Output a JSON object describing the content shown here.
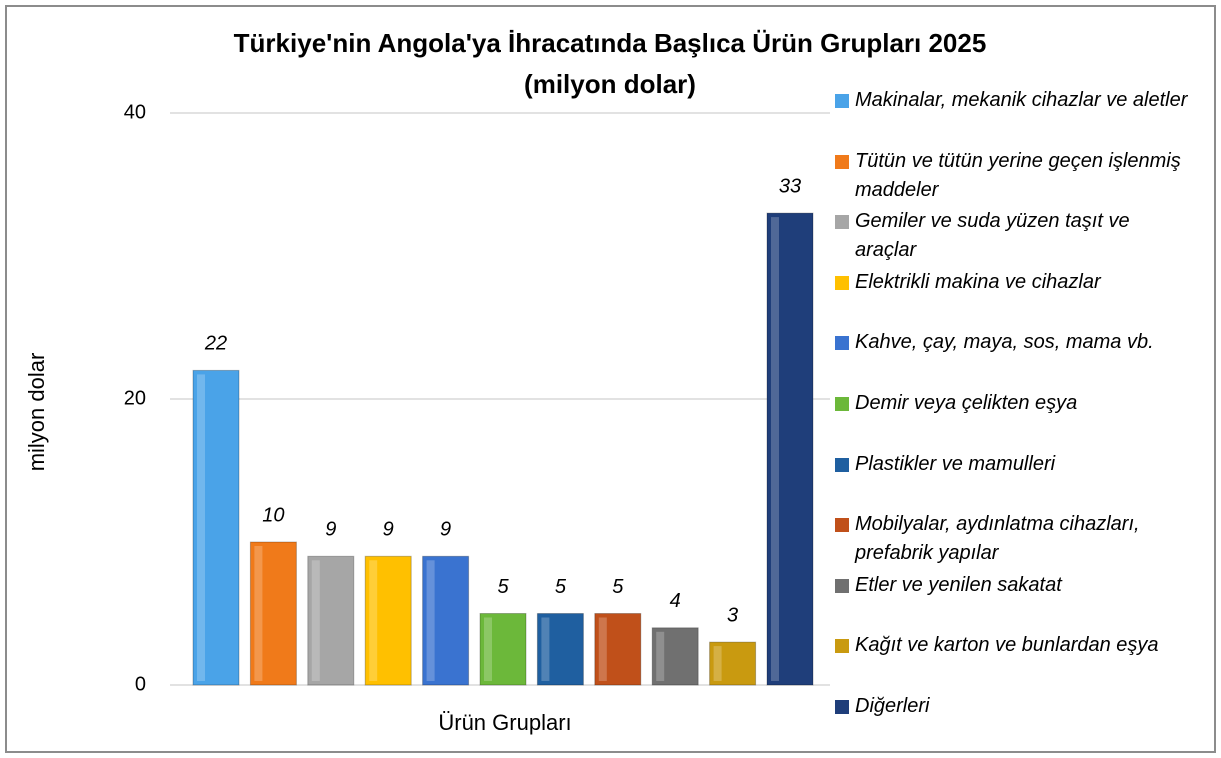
{
  "chart_data": {
    "type": "bar",
    "title": "Türkiye'nin Angola'ya İhracatında Başlıca Ürün Grupları 2025",
    "subtitle": "(milyon dolar)",
    "x_label": "Ürün Grupları",
    "y_label": "milyon dolar",
    "categories": [
      null
    ],
    "series": [
      {
        "name": "Makinalar, mekanik cihazlar ve aletler",
        "color": "#4aa3e8",
        "values": [
          22
        ]
      },
      {
        "name": "Tütün ve tütün yerine geçen işlenmiş maddeler",
        "color": "#f07a1a",
        "values": [
          10
        ]
      },
      {
        "name": "Gemiler ve suda yüzen taşıt ve araçlar",
        "color": "#a6a6a6",
        "values": [
          9
        ]
      },
      {
        "name": "Elektrikli makina ve cihazlar",
        "color": "#ffc000",
        "values": [
          9
        ]
      },
      {
        "name": "Kahve, çay, maya, sos, mama vb.",
        "color": "#3a73d0",
        "values": [
          9
        ]
      },
      {
        "name": "Demir veya çelikten eşya",
        "color": "#6cb83a",
        "values": [
          5
        ]
      },
      {
        "name": "Plastikler ve mamulleri",
        "color": "#1f5fa0",
        "values": [
          5
        ]
      },
      {
        "name": "Mobilyalar, aydınlatma cihazları, prefabrik yapılar",
        "color": "#c0501a",
        "values": [
          5
        ]
      },
      {
        "name": "Etler ve yenilen sakatat",
        "color": "#707070",
        "values": [
          4
        ]
      },
      {
        "name": "Kağıt ve karton ve bunlardan eşya",
        "color": "#c99a10",
        "values": [
          3
        ]
      },
      {
        "name": "Diğerleri",
        "color": "#1f3e7a",
        "values": [
          33
        ]
      }
    ],
    "ylim": [
      0,
      40
    ],
    "yticks": [
      0,
      20,
      40
    ],
    "grid": true,
    "legend": "right"
  }
}
